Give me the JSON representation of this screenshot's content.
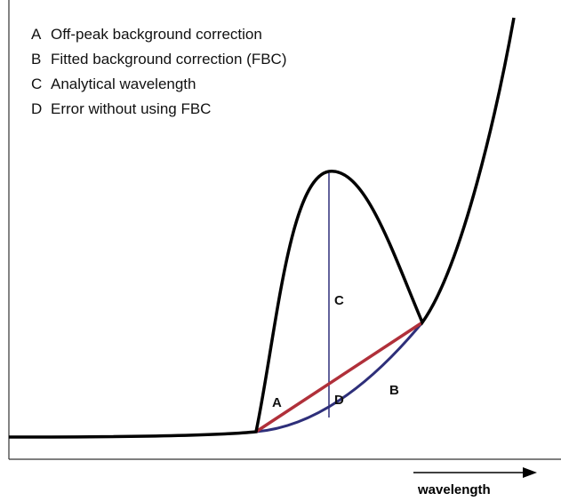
{
  "legend": [
    {
      "key": "A",
      "text": "Off-peak background correction"
    },
    {
      "key": "B",
      "text": "Fitted background correction (FBC)"
    },
    {
      "key": "C",
      "text": "Analytical wavelength"
    },
    {
      "key": "D",
      "text": "Error without using FBC"
    }
  ],
  "labels": {
    "a": "A",
    "b": "B",
    "c": "C",
    "d": "D"
  },
  "x_axis_label": "wavelength"
}
